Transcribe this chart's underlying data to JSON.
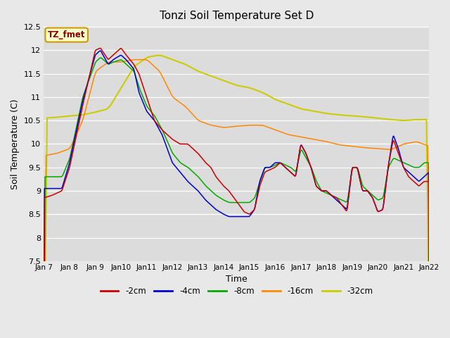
{
  "title": "Tonzi Soil Temperature Set D",
  "xlabel": "Time",
  "ylabel": "Soil Temperature (C)",
  "ylim": [
    7.5,
    12.5
  ],
  "background_color": "#e8e8e8",
  "plot_bg_color": "#dcdcdc",
  "legend_label": "TZ_fmet",
  "legend_box_color": "#ffffcc",
  "legend_box_edge": "#cc9900",
  "series_colors": {
    "-2cm": "#cc0000",
    "-4cm": "#0000cc",
    "-8cm": "#00aa00",
    "-16cm": "#ff8800",
    "-32cm": "#cccc00"
  },
  "xtick_labels": [
    "Jan 7",
    "Jan 8",
    "Jan 9",
    "Jan 10",
    "Jan 11",
    "Jan 12",
    "Jan 13",
    "Jan 14",
    "Jan 15",
    "Jan 16",
    "Jan 17",
    "Jan 18",
    "Jan 19",
    "Jan 20",
    "Jan 21",
    "Jan 22"
  ],
  "ytick_values": [
    7.5,
    8.0,
    8.5,
    9.0,
    9.5,
    10.0,
    10.5,
    11.0,
    11.5,
    12.0,
    12.5
  ],
  "series_2cm_x": [
    0,
    0.3,
    0.7,
    1.0,
    1.5,
    2.0,
    2.2,
    2.5,
    2.7,
    3.0,
    3.2,
    3.5,
    3.7,
    4.0,
    4.3,
    4.6,
    5.0,
    5.3,
    5.6,
    6.0,
    6.3,
    6.5,
    6.7,
    7.0,
    7.2,
    7.4,
    7.6,
    7.8,
    8.0,
    8.2,
    8.4,
    8.6,
    8.8,
    9.0,
    9.2,
    9.4,
    9.6,
    9.8,
    10.0,
    10.2,
    10.4,
    10.6,
    10.8,
    11.0,
    11.2,
    11.4,
    11.6,
    11.8,
    12.0,
    12.2,
    12.4,
    12.6,
    12.8,
    13.0,
    13.2,
    13.4,
    13.6,
    13.8,
    14.0,
    14.2,
    14.4,
    14.6,
    14.8,
    15.0
  ],
  "series_2cm_y": [
    8.85,
    8.9,
    9.0,
    9.5,
    10.8,
    12.0,
    12.05,
    11.8,
    11.9,
    12.05,
    11.9,
    11.7,
    11.5,
    11.0,
    10.5,
    10.3,
    10.1,
    10.0,
    10.0,
    9.8,
    9.6,
    9.5,
    9.3,
    9.1,
    9.0,
    8.85,
    8.7,
    8.55,
    8.5,
    8.6,
    9.1,
    9.4,
    9.45,
    9.5,
    9.6,
    9.5,
    9.4,
    9.3,
    10.0,
    9.8,
    9.5,
    9.1,
    9.0,
    9.0,
    8.9,
    8.85,
    8.7,
    8.55,
    9.5,
    9.5,
    9.0,
    9.0,
    8.85,
    8.55,
    8.6,
    9.5,
    10.1,
    9.8,
    9.5,
    9.3,
    9.2,
    9.1,
    9.2,
    9.2
  ],
  "series_4cm_x": [
    0,
    0.3,
    0.7,
    1.0,
    1.5,
    2.0,
    2.2,
    2.5,
    2.7,
    3.0,
    3.2,
    3.5,
    3.7,
    4.0,
    4.3,
    4.6,
    5.0,
    5.3,
    5.6,
    6.0,
    6.3,
    6.5,
    6.7,
    7.0,
    7.2,
    7.4,
    7.6,
    7.8,
    8.0,
    8.2,
    8.4,
    8.6,
    8.8,
    9.0,
    9.2,
    9.4,
    9.6,
    9.8,
    10.0,
    10.2,
    10.4,
    10.6,
    10.8,
    11.0,
    11.2,
    11.4,
    11.6,
    11.8,
    12.0,
    12.2,
    12.4,
    12.6,
    12.8,
    13.0,
    13.2,
    13.4,
    13.6,
    13.8,
    14.0,
    14.2,
    14.4,
    14.6,
    14.8,
    15.0
  ],
  "series_4cm_y": [
    9.05,
    9.05,
    9.05,
    9.6,
    10.9,
    11.9,
    12.0,
    11.7,
    11.8,
    11.9,
    11.8,
    11.6,
    11.1,
    10.7,
    10.5,
    10.2,
    9.6,
    9.4,
    9.2,
    9.0,
    8.8,
    8.7,
    8.6,
    8.5,
    8.45,
    8.45,
    8.45,
    8.45,
    8.45,
    8.6,
    9.2,
    9.5,
    9.5,
    9.6,
    9.6,
    9.5,
    9.4,
    9.3,
    10.0,
    9.8,
    9.5,
    9.1,
    9.0,
    9.0,
    8.9,
    8.8,
    8.7,
    8.6,
    9.5,
    9.5,
    9.0,
    9.0,
    8.85,
    8.55,
    8.6,
    9.5,
    10.2,
    9.9,
    9.5,
    9.4,
    9.3,
    9.2,
    9.3,
    9.4
  ],
  "series_8cm_x": [
    0,
    0.3,
    0.7,
    1.0,
    1.5,
    2.0,
    2.2,
    2.5,
    2.7,
    3.0,
    3.2,
    3.5,
    3.7,
    4.0,
    4.3,
    4.6,
    5.0,
    5.3,
    5.6,
    6.0,
    6.3,
    6.5,
    6.7,
    7.0,
    7.2,
    7.4,
    7.6,
    7.8,
    8.0,
    8.2,
    8.4,
    8.6,
    8.8,
    9.0,
    9.2,
    9.4,
    9.6,
    9.8,
    10.0,
    10.2,
    10.4,
    10.6,
    10.8,
    11.0,
    11.2,
    11.4,
    11.6,
    11.8,
    12.0,
    12.2,
    12.4,
    12.6,
    12.8,
    13.0,
    13.2,
    13.4,
    13.6,
    13.8,
    14.0,
    14.2,
    14.4,
    14.6,
    14.8,
    15.0
  ],
  "series_8cm_y": [
    9.3,
    9.3,
    9.3,
    9.7,
    11.0,
    11.75,
    11.85,
    11.7,
    11.75,
    11.8,
    11.7,
    11.55,
    11.2,
    10.8,
    10.6,
    10.3,
    9.8,
    9.6,
    9.5,
    9.3,
    9.1,
    9.0,
    8.9,
    8.8,
    8.75,
    8.75,
    8.75,
    8.75,
    8.75,
    8.85,
    9.2,
    9.5,
    9.5,
    9.55,
    9.6,
    9.55,
    9.5,
    9.4,
    9.9,
    9.7,
    9.5,
    9.2,
    9.0,
    8.95,
    8.9,
    8.85,
    8.8,
    8.75,
    9.5,
    9.5,
    9.1,
    9.0,
    8.9,
    8.8,
    8.85,
    9.5,
    9.7,
    9.65,
    9.6,
    9.55,
    9.5,
    9.5,
    9.6,
    9.6
  ],
  "series_16cm_x": [
    0,
    0.5,
    1.0,
    1.5,
    2.0,
    2.5,
    3.0,
    3.5,
    4.0,
    4.5,
    5.0,
    5.5,
    6.0,
    6.5,
    7.0,
    7.5,
    8.0,
    8.5,
    9.0,
    9.5,
    10.0,
    10.5,
    11.0,
    11.5,
    12.0,
    12.5,
    13.0,
    13.5,
    14.0,
    14.5,
    15.0
  ],
  "series_16cm_y": [
    9.75,
    9.8,
    9.9,
    10.5,
    11.55,
    11.75,
    11.75,
    11.8,
    11.8,
    11.55,
    11.0,
    10.8,
    10.5,
    10.4,
    10.35,
    10.38,
    10.4,
    10.4,
    10.3,
    10.2,
    10.15,
    10.1,
    10.05,
    9.98,
    9.95,
    9.92,
    9.9,
    9.88,
    10.0,
    10.05,
    9.95
  ],
  "series_32cm_x": [
    0,
    0.5,
    1.0,
    1.5,
    2.0,
    2.5,
    3.0,
    3.5,
    4.0,
    4.5,
    5.0,
    5.5,
    6.0,
    6.5,
    7.0,
    7.5,
    8.0,
    8.5,
    9.0,
    9.5,
    10.0,
    10.5,
    11.0,
    11.5,
    12.0,
    12.5,
    13.0,
    13.5,
    14.0,
    14.5,
    15.0
  ],
  "series_32cm_y": [
    10.55,
    10.57,
    10.6,
    10.62,
    10.68,
    10.75,
    11.2,
    11.65,
    11.85,
    11.9,
    11.8,
    11.7,
    11.55,
    11.45,
    11.35,
    11.25,
    11.2,
    11.1,
    10.95,
    10.85,
    10.75,
    10.7,
    10.65,
    10.62,
    10.6,
    10.58,
    10.55,
    10.52,
    10.5,
    10.52,
    10.52
  ]
}
